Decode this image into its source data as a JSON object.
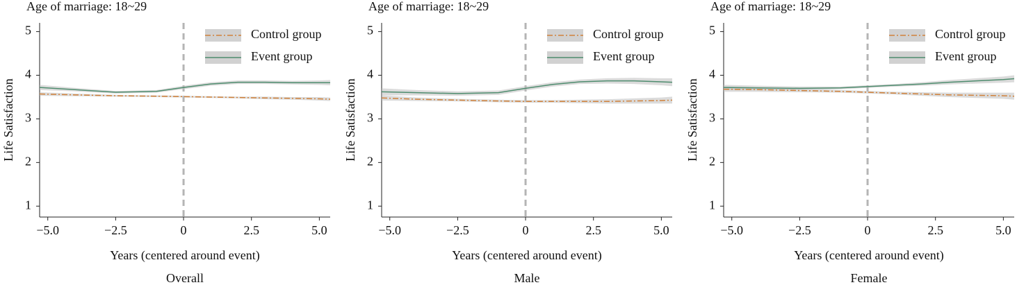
{
  "chart_data": [
    {
      "type": "line",
      "title": "Age of marriage: 18~29",
      "caption": "Overall",
      "xlabel": "Years (centered around event)",
      "ylabel": "Life Satisfaction",
      "x": [
        -5.3,
        -4,
        -2.5,
        -1,
        0,
        1,
        2,
        3,
        4,
        5,
        5.4
      ],
      "xlim": [
        -5.3,
        5.4
      ],
      "ylim": [
        0.75,
        5.2
      ],
      "xticks": [
        {
          "value": -5,
          "label": "−5.0"
        },
        {
          "value": -2.5,
          "label": "−2.5"
        },
        0,
        2.5,
        {
          "value": 5,
          "label": "5.0"
        }
      ],
      "yticks": [
        1,
        2,
        3,
        4,
        5
      ],
      "vline": 0,
      "legend": "upper right",
      "series": [
        {
          "name": "Control group",
          "color": "#d0813a",
          "dash": "dashdot",
          "values": [
            3.57,
            3.55,
            3.53,
            3.52,
            3.51,
            3.5,
            3.49,
            3.48,
            3.47,
            3.46,
            3.45
          ],
          "lower": [
            3.53,
            3.52,
            3.51,
            3.5,
            3.49,
            3.48,
            3.47,
            3.45,
            3.44,
            3.42,
            3.41
          ],
          "upper": [
            3.61,
            3.58,
            3.55,
            3.54,
            3.53,
            3.52,
            3.51,
            3.51,
            3.5,
            3.5,
            3.49
          ]
        },
        {
          "name": "Event group",
          "color": "#4e8c6e",
          "dash": "solid",
          "values": [
            3.72,
            3.67,
            3.61,
            3.63,
            3.72,
            3.8,
            3.84,
            3.84,
            3.83,
            3.83,
            3.83
          ],
          "lower": [
            3.66,
            3.63,
            3.58,
            3.6,
            3.68,
            3.76,
            3.8,
            3.8,
            3.79,
            3.78,
            3.77
          ],
          "upper": [
            3.78,
            3.71,
            3.64,
            3.66,
            3.76,
            3.84,
            3.88,
            3.88,
            3.87,
            3.88,
            3.89
          ]
        }
      ]
    },
    {
      "type": "line",
      "title": "Age of marriage: 18~29",
      "caption": "Male",
      "xlabel": "Years (centered around event)",
      "ylabel": "Life Satisfaction",
      "x": [
        -5.3,
        -4,
        -2.5,
        -1,
        0,
        1,
        2,
        3,
        4,
        5,
        5.4
      ],
      "xlim": [
        -5.3,
        5.4
      ],
      "ylim": [
        0.75,
        5.2
      ],
      "xticks": [
        {
          "value": -5,
          "label": "−5.0"
        },
        {
          "value": -2.5,
          "label": "−2.5"
        },
        0,
        2.5,
        {
          "value": 5,
          "label": "5.0"
        }
      ],
      "yticks": [
        1,
        2,
        3,
        4,
        5
      ],
      "vline": 0,
      "legend": "upper right",
      "series": [
        {
          "name": "Control group",
          "color": "#d0813a",
          "dash": "dashdot",
          "values": [
            3.48,
            3.45,
            3.43,
            3.41,
            3.4,
            3.4,
            3.4,
            3.4,
            3.41,
            3.42,
            3.43
          ],
          "lower": [
            3.42,
            3.41,
            3.4,
            3.38,
            3.37,
            3.37,
            3.36,
            3.35,
            3.35,
            3.35,
            3.35
          ],
          "upper": [
            3.54,
            3.49,
            3.46,
            3.44,
            3.43,
            3.43,
            3.44,
            3.45,
            3.47,
            3.49,
            3.51
          ]
        },
        {
          "name": "Event group",
          "color": "#4e8c6e",
          "dash": "solid",
          "values": [
            3.62,
            3.6,
            3.58,
            3.6,
            3.7,
            3.79,
            3.85,
            3.87,
            3.87,
            3.85,
            3.84
          ],
          "lower": [
            3.54,
            3.54,
            3.53,
            3.55,
            3.65,
            3.74,
            3.8,
            3.81,
            3.8,
            3.77,
            3.75
          ],
          "upper": [
            3.7,
            3.66,
            3.63,
            3.65,
            3.75,
            3.84,
            3.9,
            3.93,
            3.94,
            3.93,
            3.93
          ]
        }
      ]
    },
    {
      "type": "line",
      "title": "Age of marriage: 18~29",
      "caption": "Female",
      "xlabel": "Years (centered around event)",
      "ylabel": "Life Satisfaction",
      "x": [
        -5.3,
        -4,
        -2.5,
        -1,
        0,
        1,
        2,
        3,
        4,
        5,
        5.4
      ],
      "xlim": [
        -5.3,
        5.4
      ],
      "ylim": [
        0.75,
        5.2
      ],
      "xticks": [
        {
          "value": -5,
          "label": "−5.0"
        },
        {
          "value": -2.5,
          "label": "−2.5"
        },
        0,
        2.5,
        {
          "value": 5,
          "label": "5.0"
        }
      ],
      "yticks": [
        1,
        2,
        3,
        4,
        5
      ],
      "vline": 0,
      "legend": "upper right",
      "series": [
        {
          "name": "Control group",
          "color": "#d0813a",
          "dash": "dashdot",
          "values": [
            3.68,
            3.67,
            3.65,
            3.63,
            3.61,
            3.59,
            3.57,
            3.55,
            3.54,
            3.53,
            3.52
          ],
          "lower": [
            3.62,
            3.62,
            3.61,
            3.6,
            3.58,
            3.56,
            3.53,
            3.5,
            3.48,
            3.46,
            3.44
          ],
          "upper": [
            3.74,
            3.72,
            3.69,
            3.66,
            3.64,
            3.62,
            3.61,
            3.6,
            3.6,
            3.6,
            3.6
          ]
        },
        {
          "name": "Event group",
          "color": "#4e8c6e",
          "dash": "solid",
          "values": [
            3.72,
            3.71,
            3.7,
            3.71,
            3.74,
            3.77,
            3.8,
            3.84,
            3.87,
            3.9,
            3.92
          ],
          "lower": [
            3.66,
            3.66,
            3.66,
            3.68,
            3.71,
            3.74,
            3.76,
            3.79,
            3.81,
            3.83,
            3.84
          ],
          "upper": [
            3.78,
            3.76,
            3.74,
            3.74,
            3.77,
            3.8,
            3.84,
            3.89,
            3.93,
            3.97,
            4.0
          ]
        }
      ]
    }
  ]
}
